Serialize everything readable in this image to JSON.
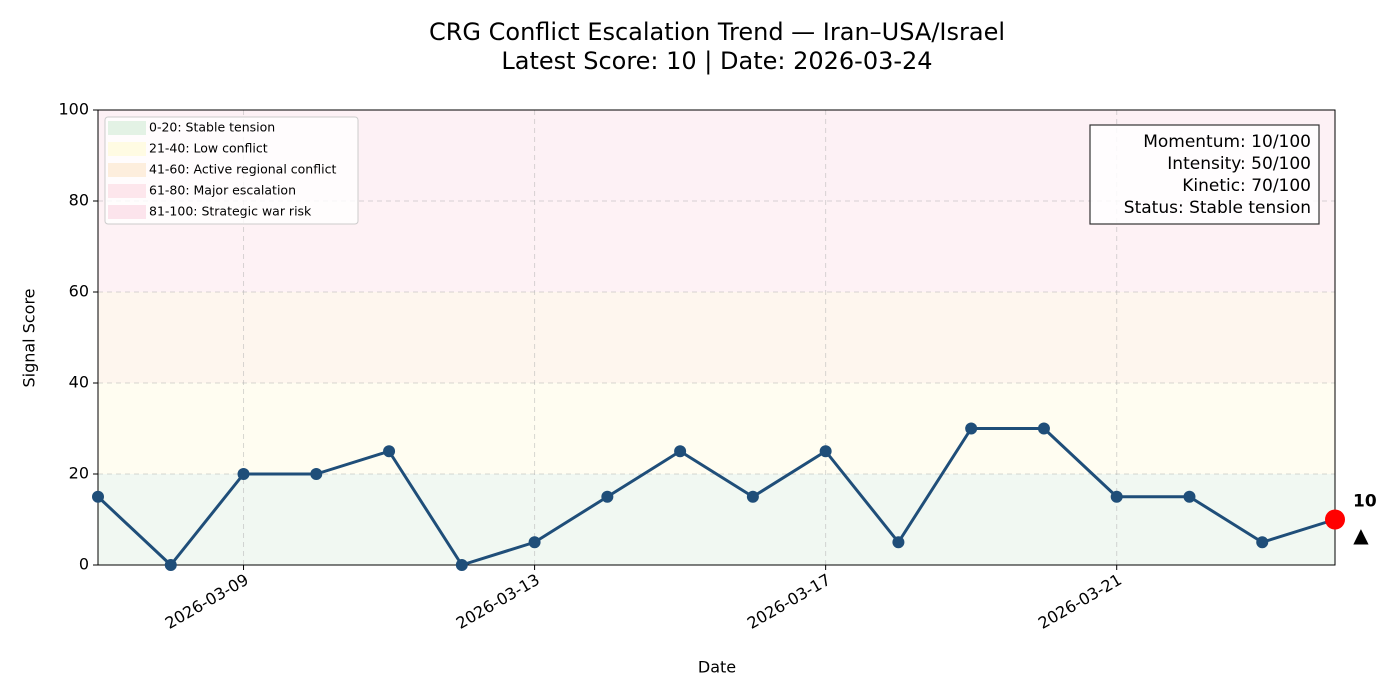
{
  "chart_data": {
    "type": "line",
    "title": "CRG Conflict Escalation Trend — Iran–USA/Israel",
    "subtitle": "Latest Score: 10 | Date: 2026-03-24",
    "xlabel": "Date",
    "ylabel": "Signal Score",
    "x": [
      "2026-03-07",
      "2026-03-08",
      "2026-03-09",
      "2026-03-10",
      "2026-03-11",
      "2026-03-12",
      "2026-03-13",
      "2026-03-14",
      "2026-03-15",
      "2026-03-16",
      "2026-03-17",
      "2026-03-18",
      "2026-03-19",
      "2026-03-20",
      "2026-03-21",
      "2026-03-22",
      "2026-03-23",
      "2026-03-24"
    ],
    "series": [
      {
        "name": "Signal Score",
        "color": "#1f4e79",
        "values": [
          15,
          0,
          20,
          20,
          25,
          0,
          5,
          15,
          25,
          15,
          25,
          5,
          30,
          30,
          15,
          15,
          5,
          10
        ]
      }
    ],
    "highlight_color": "#ff0000",
    "trend_marker": "▲",
    "xlim": [
      "2026-03-07",
      "2026-03-24"
    ],
    "xticks": [
      "2026-03-09",
      "2026-03-13",
      "2026-03-17",
      "2026-03-21"
    ],
    "ylim": [
      0,
      100
    ],
    "yticks": [
      0,
      20,
      40,
      60,
      80,
      100
    ],
    "grid": true,
    "legend_position": "upper left",
    "bands": [
      {
        "label": "0-20: Stable tension",
        "from": 0,
        "to": 20,
        "color": "#e3f2e5"
      },
      {
        "label": "21-40: Low conflict",
        "from": 20,
        "to": 40,
        "color": "#fffbe3"
      },
      {
        "label": "41-60: Active regional conflict",
        "from": 40,
        "to": 60,
        "color": "#fdeedd"
      },
      {
        "label": "61-80: Major escalation",
        "from": 60,
        "to": 80,
        "color": "#fde6ec"
      },
      {
        "label": "81-100: Strategic war risk",
        "from": 80,
        "to": 100,
        "color": "#fce4ec"
      }
    ],
    "info_box": [
      "Momentum: 10/100",
      "Intensity: 50/100",
      "Kinetic: 70/100",
      "Status: Stable tension"
    ]
  }
}
